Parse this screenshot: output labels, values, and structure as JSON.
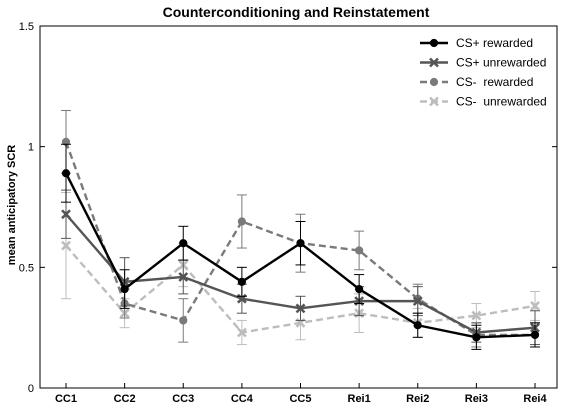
{
  "chart_data": {
    "type": "line",
    "title": "Counterconditioning and Reinstatement",
    "xlabel": "",
    "ylabel": "mean anticipatory SCR",
    "categories": [
      "CC1",
      "CC2",
      "CC3",
      "CC4",
      "CC5",
      "Rei1",
      "Rei2",
      "Rei3",
      "Rei4"
    ],
    "ylim": [
      0,
      1.5
    ],
    "yticks": [
      0,
      0.5,
      1,
      1.5
    ],
    "ytick_labels": [
      "0",
      "0.5",
      "1",
      "1.5"
    ],
    "grid": false,
    "legend_position": "top-right",
    "series": [
      {
        "name": "CS+ rewarded",
        "color": "#000000",
        "dash": "solid",
        "marker": "circle",
        "values": [
          0.89,
          0.41,
          0.6,
          0.44,
          0.6,
          0.41,
          0.26,
          0.21,
          0.22
        ],
        "err": [
          0.12,
          0.08,
          0.07,
          0.06,
          0.09,
          0.06,
          0.05,
          0.05,
          0.05
        ]
      },
      {
        "name": "CS+ unrewarded",
        "color": "#555555",
        "dash": "solid",
        "marker": "x",
        "values": [
          0.72,
          0.44,
          0.46,
          0.37,
          0.33,
          0.36,
          0.36,
          0.23,
          0.25
        ],
        "err": [
          0.1,
          0.1,
          0.07,
          0.06,
          0.05,
          0.06,
          0.06,
          0.04,
          0.07
        ]
      },
      {
        "name": "CS-  rewarded",
        "color": "#7a7a7a",
        "dash": "dashed",
        "marker": "circle",
        "values": [
          1.02,
          0.35,
          0.28,
          0.69,
          0.6,
          0.57,
          0.37,
          0.22,
          0.22
        ],
        "err": [
          0.13,
          0.06,
          0.09,
          0.11,
          0.12,
          0.08,
          0.06,
          0.05,
          0.05
        ]
      },
      {
        "name": "CS-  unrewarded",
        "color": "#bdbdbd",
        "dash": "dashed",
        "marker": "x",
        "values": [
          0.59,
          0.31,
          0.51,
          0.23,
          0.27,
          0.31,
          0.27,
          0.3,
          0.34
        ],
        "err": [
          0.22,
          0.06,
          0.09,
          0.05,
          0.07,
          0.08,
          0.06,
          0.05,
          0.06
        ]
      }
    ]
  }
}
